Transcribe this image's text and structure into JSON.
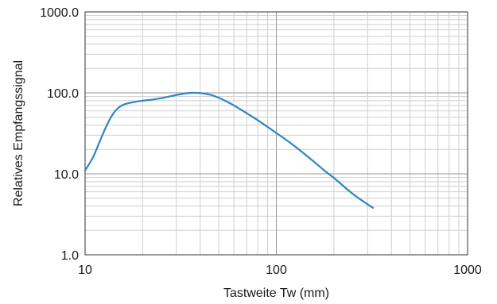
{
  "chart_data": {
    "type": "line",
    "title": "",
    "xlabel": "Tastweite Tw (mm)",
    "ylabel": "Relatives Empfangssignal",
    "x_scale": "log",
    "y_scale": "log",
    "xlim": [
      10,
      1000
    ],
    "ylim": [
      1,
      1000
    ],
    "x_ticks": [
      {
        "value": 10,
        "label": "10"
      },
      {
        "value": 100,
        "label": "100"
      },
      {
        "value": 1000,
        "label": "1000"
      }
    ],
    "y_ticks": [
      {
        "value": 1,
        "label": "1.0"
      },
      {
        "value": 10,
        "label": "10.0"
      },
      {
        "value": 100,
        "label": "100.0"
      },
      {
        "value": 1000,
        "label": "1000.0"
      }
    ],
    "grid": true,
    "grid_minor": true,
    "colors": {
      "line": "#2e86c1",
      "grid_major": "#9a9a9a",
      "grid_minor": "#cfcfcf",
      "axis": "#333333"
    },
    "series": [
      {
        "x": [
          10,
          11,
          12,
          13,
          14,
          15,
          16,
          18,
          20,
          22,
          25,
          28,
          30,
          33,
          36,
          40,
          45,
          50,
          55,
          60,
          70,
          80,
          90,
          100,
          120,
          150,
          180,
          200,
          250,
          300,
          320
        ],
        "y": [
          11,
          16,
          26,
          40,
          55,
          66,
          72,
          77,
          80,
          82,
          86,
          91,
          94,
          98,
          100,
          99.5,
          95,
          87,
          78,
          70,
          56,
          46,
          38,
          32,
          23.5,
          15.5,
          10.8,
          8.9,
          5.7,
          4.2,
          3.8
        ]
      }
    ]
  }
}
